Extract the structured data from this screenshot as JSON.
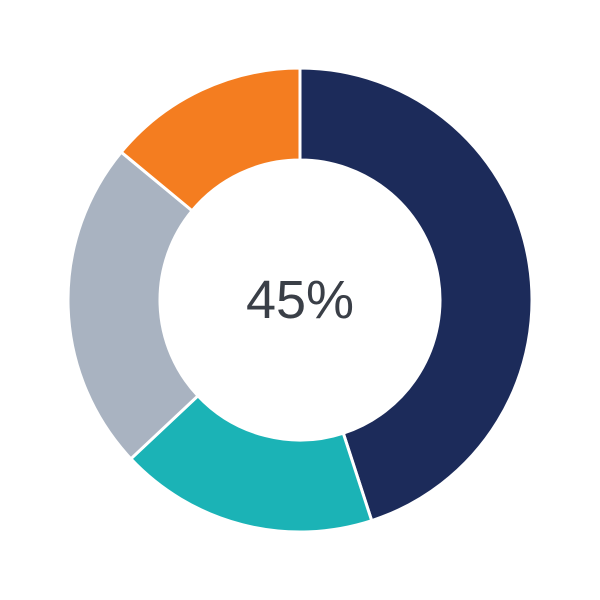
{
  "chart_data": {
    "type": "pie",
    "donut": true,
    "center_label": "45%",
    "slices": [
      {
        "value": 45,
        "color": "#1c2b5a"
      },
      {
        "value": 18,
        "color": "#1bb3b6"
      },
      {
        "value": 23,
        "color": "#a9b3c1"
      },
      {
        "value": 14,
        "color": "#f47d20"
      }
    ],
    "start": "top",
    "direction": "clockwise",
    "legend": "none"
  }
}
